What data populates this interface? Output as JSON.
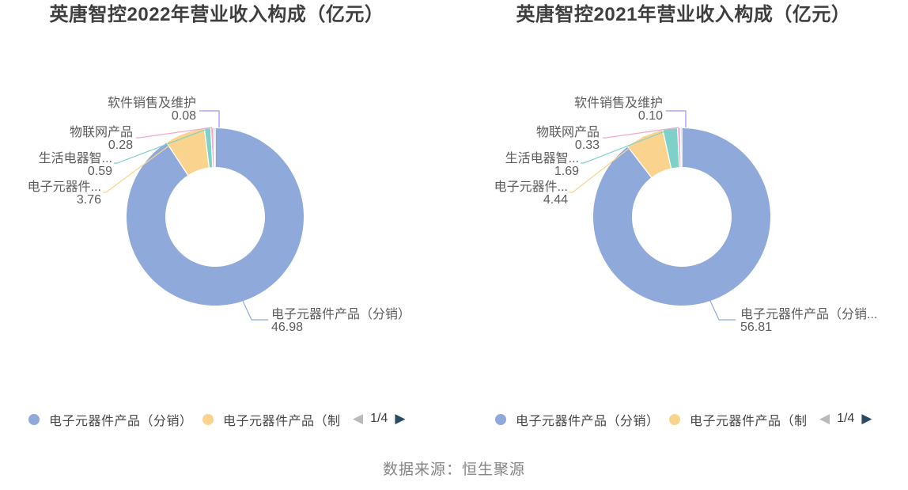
{
  "source": "数据来源：恒生聚源",
  "legend_pager": {
    "prev": "◀",
    "next": "▶"
  },
  "charts": [
    {
      "title": "英唐智控2022年营业收入构成（亿元）",
      "chart_data": {
        "type": "pie",
        "subtype": "donut",
        "start_angle": "top",
        "direction": "clockwise",
        "series": [
          {
            "label": "电子元器件产品（分销）",
            "value": 46.98,
            "value_text": "46.98",
            "color": "#8FA9DB"
          },
          {
            "label": "电子元器件...",
            "value": 3.76,
            "value_text": "3.76",
            "color": "#FAD48F"
          },
          {
            "label": "生活电器智...",
            "value": 0.59,
            "value_text": "0.59",
            "color": "#7DD1C8"
          },
          {
            "label": "物联网产品",
            "value": 0.28,
            "value_text": "0.28",
            "color": "#F1A7CD"
          },
          {
            "label": "软件销售及维护",
            "value": 0.08,
            "value_text": "0.08",
            "color": "#A094E5"
          }
        ]
      },
      "legend": {
        "items": [
          {
            "label": "电子元器件产品（分销）",
            "color": "#8FA9DB"
          },
          {
            "label": "电子元器件产品（制",
            "color": "#FAD48F"
          }
        ],
        "page": "1/4"
      }
    },
    {
      "title": "英唐智控2021年营业收入构成（亿元）",
      "chart_data": {
        "type": "pie",
        "subtype": "donut",
        "start_angle": "top",
        "direction": "clockwise",
        "series": [
          {
            "label": "电子元器件产品（分销...",
            "value": 56.81,
            "value_text": "56.81",
            "color": "#8FA9DB"
          },
          {
            "label": "电子元器件...",
            "value": 4.44,
            "value_text": "4.44",
            "color": "#FAD48F"
          },
          {
            "label": "生活电器智...",
            "value": 1.69,
            "value_text": "1.69",
            "color": "#7DD1C8"
          },
          {
            "label": "物联网产品",
            "value": 0.33,
            "value_text": "0.33",
            "color": "#F1A7CD"
          },
          {
            "label": "软件销售及维护",
            "value": 0.1,
            "value_text": "0.10",
            "color": "#A094E5"
          }
        ]
      },
      "legend": {
        "items": [
          {
            "label": "电子元器件产品（分销）",
            "color": "#8FA9DB"
          },
          {
            "label": "电子元器件产品（制",
            "color": "#FAD48F"
          }
        ],
        "page": "1/4"
      }
    }
  ]
}
